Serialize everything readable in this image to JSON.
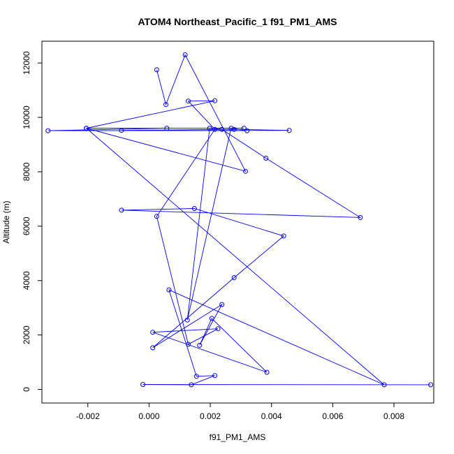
{
  "chart_data": {
    "type": "line",
    "title": "ATOM4 Northeast_Pacific_1 f91_PM1_AMS",
    "xlabel": "f91_PM1_AMS",
    "ylabel": "Altitude (m)",
    "xlim": [
      -0.0035,
      0.0093
    ],
    "ylim": [
      -500,
      12800
    ],
    "x_ticks": [
      -0.002,
      0.0,
      0.002,
      0.004,
      0.006,
      0.008
    ],
    "x_tick_labels": [
      "-0.002",
      "0.000",
      "0.002",
      "0.004",
      "0.006",
      "0.008"
    ],
    "y_ticks": [
      0,
      2000,
      4000,
      6000,
      8000,
      10000,
      12000
    ],
    "y_tick_labels": [
      "0",
      "2000",
      "4000",
      "6000",
      "8000",
      "10000",
      "12000"
    ],
    "grid": false,
    "line_color": "#0000ff",
    "marker": "open-circle",
    "series": [
      {
        "x": [
          0.00025,
          0.00055,
          0.00118,
          0.00315,
          -0.00205,
          0.00215,
          0.00128,
          0.00215,
          0.00025,
          0.00128,
          0.00225,
          0.00012,
          0.00385,
          0.00205,
          0.00165,
          0.00238,
          0.00012,
          0.00278,
          0.0044,
          0.00148,
          -0.0009,
          0.0069,
          0.00382,
          0.00238,
          0.00198,
          0.00125,
          0.00268,
          0.0032,
          -0.0009,
          0.00278,
          0.00458,
          -0.0033,
          0.00058,
          0.0031,
          -0.00205,
          0.00768,
          0.00065,
          0.00155,
          0.00215,
          0.00138,
          -0.0002,
          0.0092
        ],
        "y": [
          11750,
          10470,
          12300,
          8020,
          9600,
          10610,
          10600,
          9560,
          6360,
          1660,
          2230,
          2100,
          630,
          2610,
          1620,
          3120,
          1530,
          4110,
          5640,
          6650,
          6590,
          6320,
          8500,
          9560,
          9600,
          2550,
          9600,
          9510,
          9520,
          9560,
          9520,
          9510,
          9600,
          9600,
          9600,
          170,
          3660,
          480,
          510,
          170,
          180,
          170
        ]
      }
    ]
  }
}
